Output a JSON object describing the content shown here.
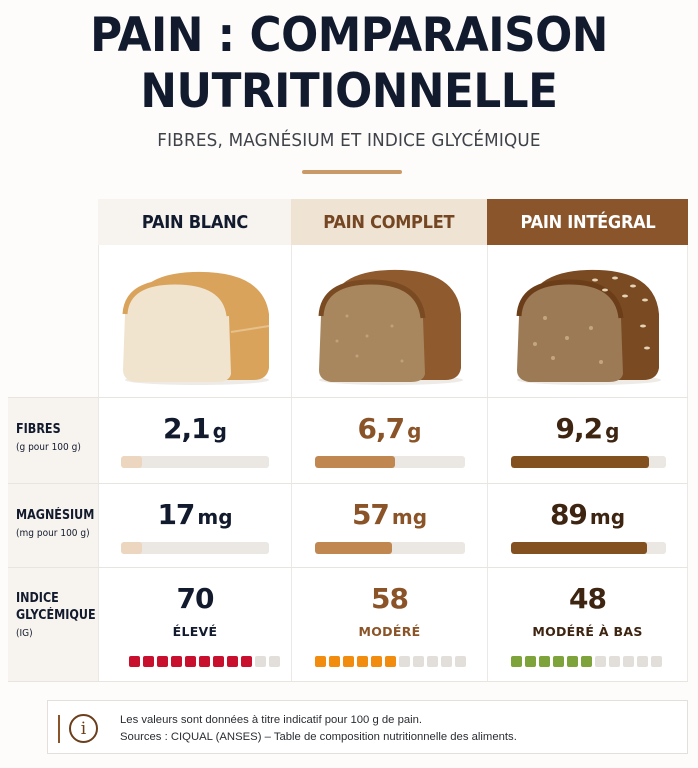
{
  "header": {
    "title_line1": "PAIN : COMPARAISON",
    "title_line2": "NUTRITIONNELLE",
    "subtitle": "FIBRES, MAGNÉSIUM ET INDICE GLYCÉMIQUE"
  },
  "columns": [
    {
      "label": "PAIN BLANC",
      "image_icon": "white-bread-loaf-icon"
    },
    {
      "label": "PAIN COMPLET",
      "image_icon": "whole-wheat-bread-loaf-icon"
    },
    {
      "label": "PAIN INTÉGRAL",
      "image_icon": "wholegrain-bread-loaf-icon"
    }
  ],
  "rows": {
    "fibres": {
      "label": "FIBRES",
      "sublabel": "(g pour 100 g)",
      "values": [
        {
          "num": "2,1",
          "unit": "g"
        },
        {
          "num": "6,7",
          "unit": "g"
        },
        {
          "num": "9,2",
          "unit": "g"
        }
      ]
    },
    "magnesium": {
      "label": "MAGNÉSIUM",
      "sublabel": "(mg pour 100 g)",
      "values": [
        {
          "num": "17",
          "unit": "mg"
        },
        {
          "num": "57",
          "unit": "mg"
        },
        {
          "num": "89",
          "unit": "mg"
        }
      ]
    },
    "ig": {
      "label_line1": "INDICE",
      "label_line2": "GLYCÉMIQUE",
      "sublabel": "(IG)",
      "values": [
        {
          "num": "70",
          "level": "ÉLEVÉ"
        },
        {
          "num": "58",
          "level": "MODÉRÉ"
        },
        {
          "num": "48",
          "level": "MODÉRÉ À BAS"
        }
      ]
    }
  },
  "colors": {
    "blanc_bar": "#ecd6bf",
    "complet_bar": "#c08850",
    "integral_bar": "#83511f",
    "ig_high": "#c8102e",
    "ig_moderate": "#f28c0f",
    "ig_low": "#7ea33b",
    "segment_empty": "#e2dfdb"
  },
  "note": {
    "icon": "info-icon",
    "line1": "Les valeurs sont données à titre indicatif pour 100 g de pain.",
    "line2": "Sources : CIQUAL (ANSES) – Table de composition nutritionnelle des aliments."
  },
  "chart_data": {
    "type": "table",
    "title": "PAIN : COMPARAISON NUTRITIONNELLE",
    "subtitle": "FIBRES, MAGNÉSIUM ET INDICE GLYCÉMIQUE",
    "categories": [
      "PAIN BLANC",
      "PAIN COMPLET",
      "PAIN INTÉGRAL"
    ],
    "series": [
      {
        "name": "Fibres (g pour 100 g)",
        "values": [
          2.1,
          6.7,
          9.2
        ],
        "bar_fill_pct": [
          14,
          53,
          89
        ]
      },
      {
        "name": "Magnésium (mg pour 100 g)",
        "values": [
          17,
          57,
          89
        ],
        "bar_fill_pct": [
          14,
          51,
          88
        ]
      },
      {
        "name": "Indice glycémique (IG)",
        "values": [
          70,
          58,
          48
        ],
        "levels": [
          "ÉLEVÉ",
          "MODÉRÉ",
          "MODÉRÉ À BAS"
        ],
        "segments_filled": [
          9,
          6,
          6
        ],
        "segments_total": 11
      }
    ],
    "source": "CIQUAL (ANSES) – Table de composition nutritionnelle des aliments."
  }
}
